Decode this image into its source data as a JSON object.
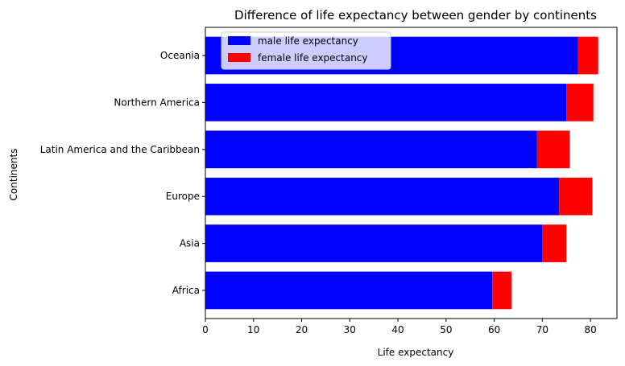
{
  "chart_data": {
    "type": "bar",
    "orientation": "horizontal",
    "stacked": true,
    "title": "Difference of life expectancy between gender by continents",
    "xlabel": "Life expectancy",
    "ylabel": "Continents",
    "xlim": [
      0,
      85.5
    ],
    "xticks": [
      0,
      10,
      20,
      30,
      40,
      50,
      60,
      70,
      80
    ],
    "grid": false,
    "legend_position": "top-left",
    "categories": [
      "Africa",
      "Asia",
      "Europe",
      "Latin America and the Caribbean",
      "Northern America",
      "Oceania"
    ],
    "series": [
      {
        "name": "male life expectancy",
        "color": "#0000ff",
        "values": [
          59.6,
          70.0,
          73.5,
          68.9,
          75.0,
          77.4
        ]
      },
      {
        "name": "female life expectancy",
        "color": "#ff0000",
        "values": [
          4.0,
          5.0,
          6.9,
          6.8,
          5.6,
          4.2
        ]
      }
    ]
  }
}
